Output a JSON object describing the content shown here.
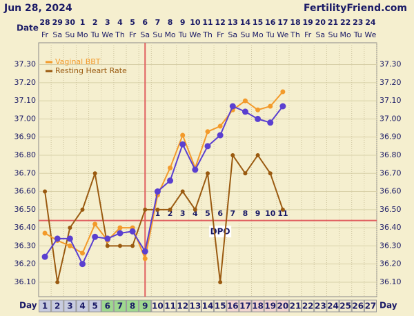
{
  "chart_data": {
    "type": "line",
    "title": "Jun 28, 2024",
    "site": "FertilityFriend.com",
    "date_axis_label": "Date",
    "day_axis_label": "Day",
    "dates": [
      "28",
      "29",
      "30",
      "1",
      "2",
      "3",
      "4",
      "5",
      "6",
      "7",
      "8",
      "9",
      "10",
      "11",
      "12",
      "13",
      "14",
      "15",
      "16",
      "17",
      "18",
      "19",
      "20",
      "21",
      "22",
      "23",
      "24"
    ],
    "weekdays": [
      "Fr",
      "Sa",
      "Su",
      "Mo",
      "Tu",
      "We",
      "Th",
      "Fr",
      "Sa",
      "Su",
      "Mo",
      "Tu",
      "We",
      "Th",
      "Fr",
      "Sa",
      "Su",
      "Mo",
      "Tu",
      "We",
      "Th",
      "Fr",
      "Sa",
      "Su",
      "Mo",
      "Tu",
      "We"
    ],
    "x": [
      1,
      2,
      3,
      4,
      5,
      6,
      7,
      8,
      9,
      10,
      11,
      12,
      13,
      14,
      15,
      16,
      17,
      18,
      19,
      20,
      21,
      22,
      23,
      24,
      25,
      26,
      27
    ],
    "day_colors": [
      "#c8cce0",
      "#c8cce0",
      "#c8cce0",
      "#c8cce0",
      "#c8cce0",
      "#9fd88f",
      "#9fd88f",
      "#9fd88f",
      "#9fd88f",
      "#f3ecd0",
      "#f3ecd0",
      "#f3ecd0",
      "#f3ecd0",
      "#f3ecd0",
      "#f3ecd0",
      "#f2d6d0",
      "#f2d6d0",
      "#f2d6d0",
      "#f2d6d0",
      "#f2d6d0",
      "#f3ecd0",
      "#f3ecd0",
      "#f3ecd0",
      "#f3ecd0",
      "#f3ecd0",
      "#f3ecd0",
      "#f3ecd0"
    ],
    "series": [
      {
        "color": "#5a3fd0",
        "values": [
          36.24,
          36.34,
          36.34,
          36.2,
          36.35,
          36.34,
          36.37,
          36.38,
          36.27,
          36.6,
          36.66,
          36.86,
          36.72,
          36.85,
          36.91,
          37.07,
          37.04,
          37.0,
          36.98,
          37.07,
          null,
          null,
          null,
          null,
          null,
          null,
          null
        ]
      },
      {
        "name": "Vaginal BBT",
        "color": "#f39a2a",
        "values": [
          36.37,
          36.33,
          36.3,
          36.26,
          36.42,
          36.33,
          36.4,
          36.4,
          36.23,
          36.58,
          36.73,
          36.91,
          36.73,
          36.93,
          36.96,
          37.05,
          37.1,
          37.05,
          37.07,
          37.15,
          null,
          null,
          null,
          null,
          null,
          null,
          null
        ]
      },
      {
        "name": "Resting Heart Rate",
        "color": "#9a5a10",
        "values": [
          36.6,
          36.1,
          36.4,
          36.5,
          36.7,
          36.3,
          36.3,
          36.3,
          36.5,
          36.5,
          36.5,
          36.6,
          36.5,
          36.7,
          36.1,
          36.8,
          36.7,
          36.8,
          36.7,
          36.5,
          null,
          null,
          null,
          null,
          null,
          null,
          null
        ]
      }
    ],
    "coverline": 36.44,
    "ovulation_day": 9,
    "dpo": [
      null,
      null,
      null,
      null,
      null,
      null,
      null,
      null,
      null,
      1,
      2,
      3,
      4,
      5,
      6,
      7,
      8,
      9,
      10,
      11,
      null,
      null,
      null,
      null,
      null,
      null,
      null
    ],
    "dpo_title": "DPO",
    "ylim": [
      36.02,
      37.42
    ],
    "yticks": [
      {
        "value": 37.3,
        "label": "37.30"
      },
      {
        "value": 37.2,
        "label": "37.20"
      },
      {
        "value": 37.1,
        "label": "37.10"
      },
      {
        "value": 37.0,
        "label": "37.00"
      },
      {
        "value": 36.9,
        "label": "36.90"
      },
      {
        "value": 36.8,
        "label": "36.80"
      },
      {
        "value": 36.7,
        "label": "36.70"
      },
      {
        "value": 36.6,
        "label": "36.60"
      },
      {
        "value": 36.5,
        "label": "36.50"
      },
      {
        "value": 36.4,
        "label": "36.40"
      },
      {
        "value": 36.3,
        "label": "36.30"
      },
      {
        "value": 36.2,
        "label": "36.20"
      },
      {
        "value": 36.1,
        "label": "36.10"
      }
    ],
    "grid": true,
    "legend": "upper left"
  }
}
